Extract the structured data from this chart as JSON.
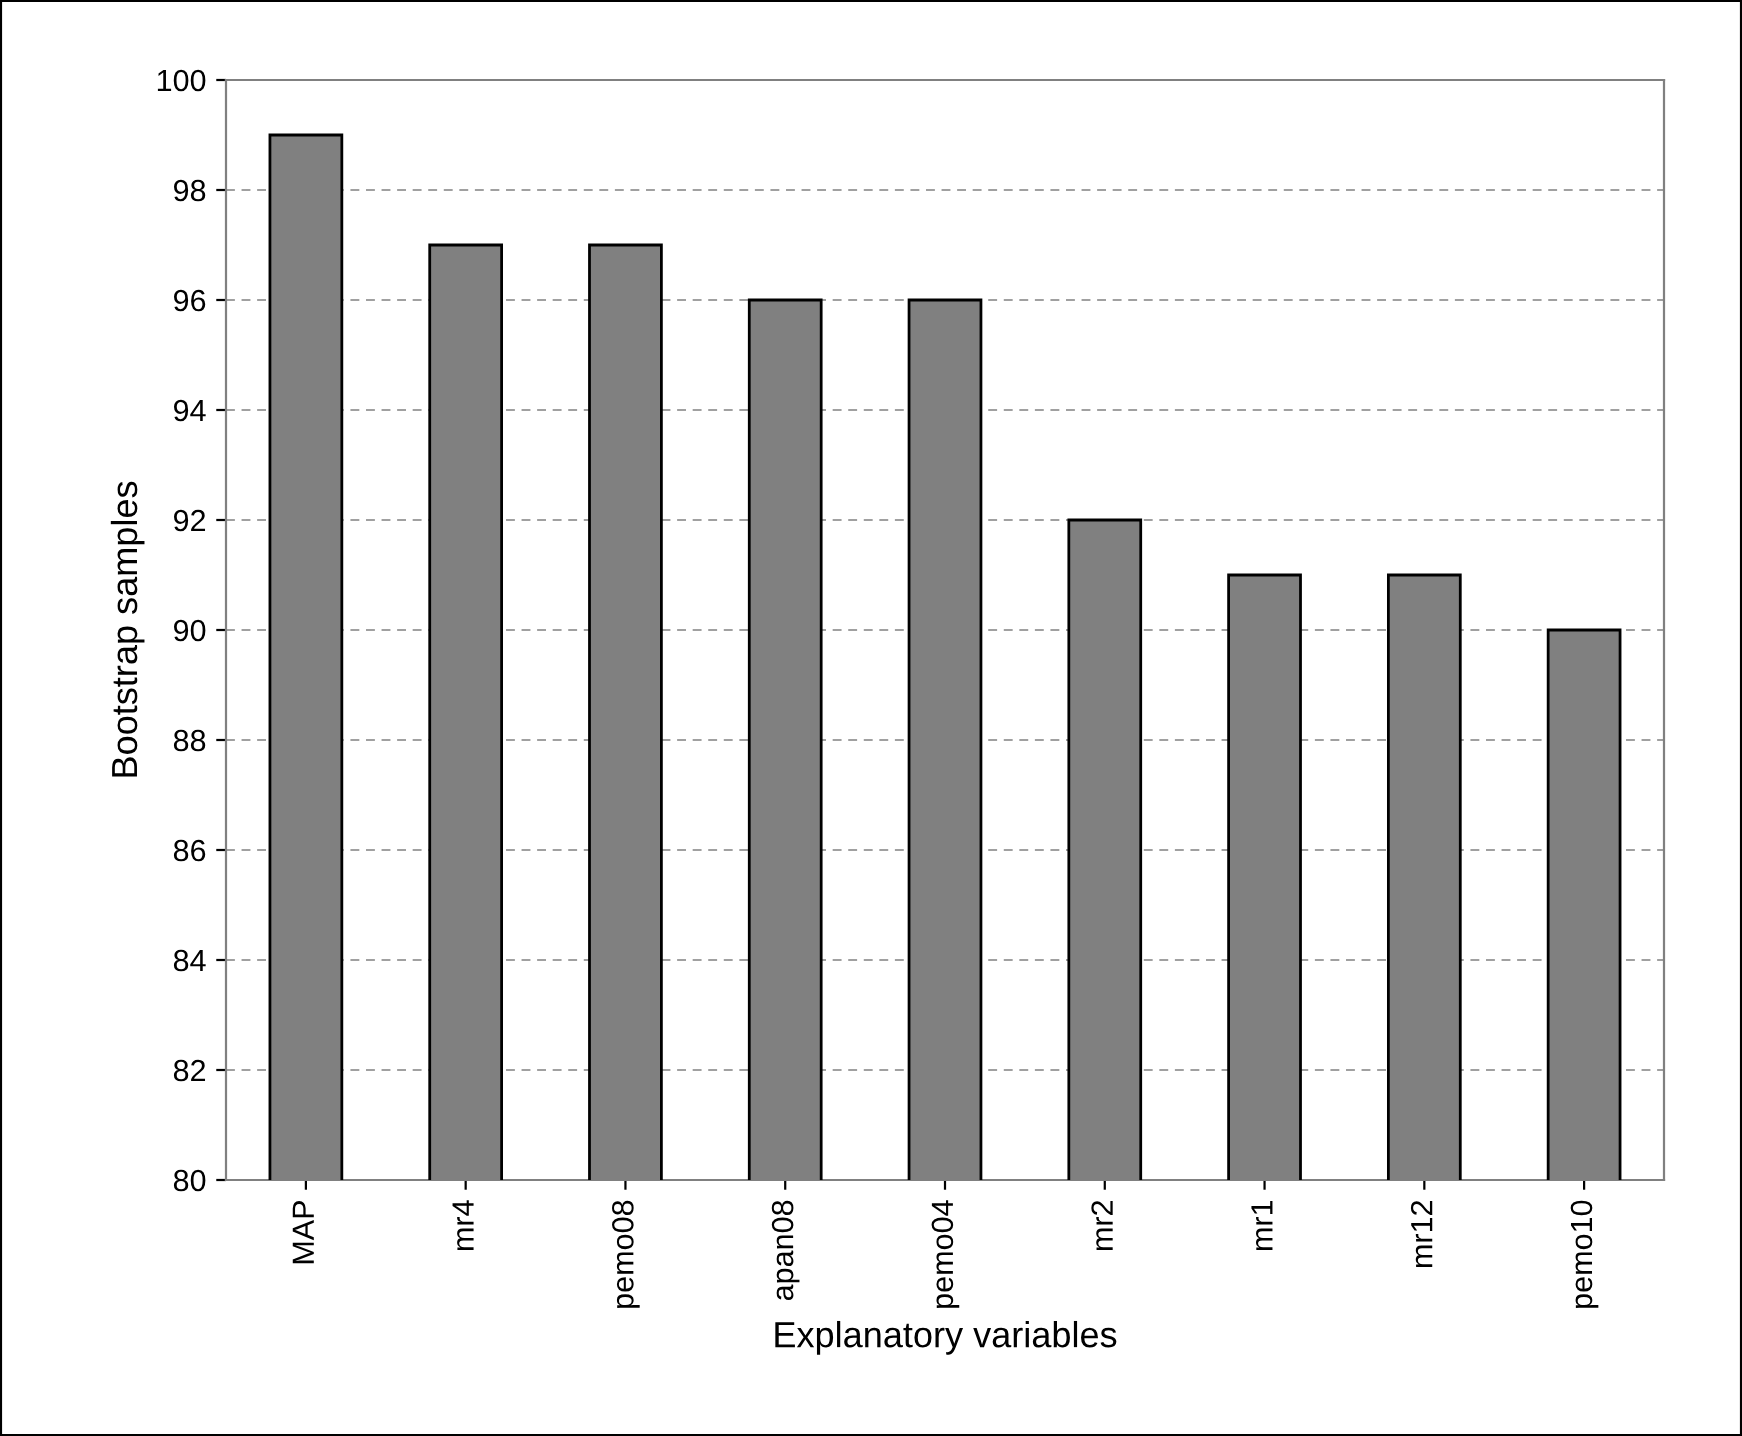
{
  "chart_data": {
    "type": "bar",
    "xlabel": "Explanatory variables",
    "ylabel": "Bootstrap samples",
    "categories": [
      "MAP",
      "mr4",
      "pemo08",
      "apan08",
      "pemo04",
      "mr2",
      "mr1",
      "mr12",
      "pemo10"
    ],
    "values": [
      99,
      97,
      97,
      96,
      96,
      92,
      91,
      91,
      90
    ],
    "color": "#808080",
    "ylim": [
      80,
      100
    ],
    "yticks": [
      80,
      82,
      84,
      86,
      88,
      90,
      92,
      94,
      96,
      98,
      100
    ],
    "grid": "y"
  }
}
